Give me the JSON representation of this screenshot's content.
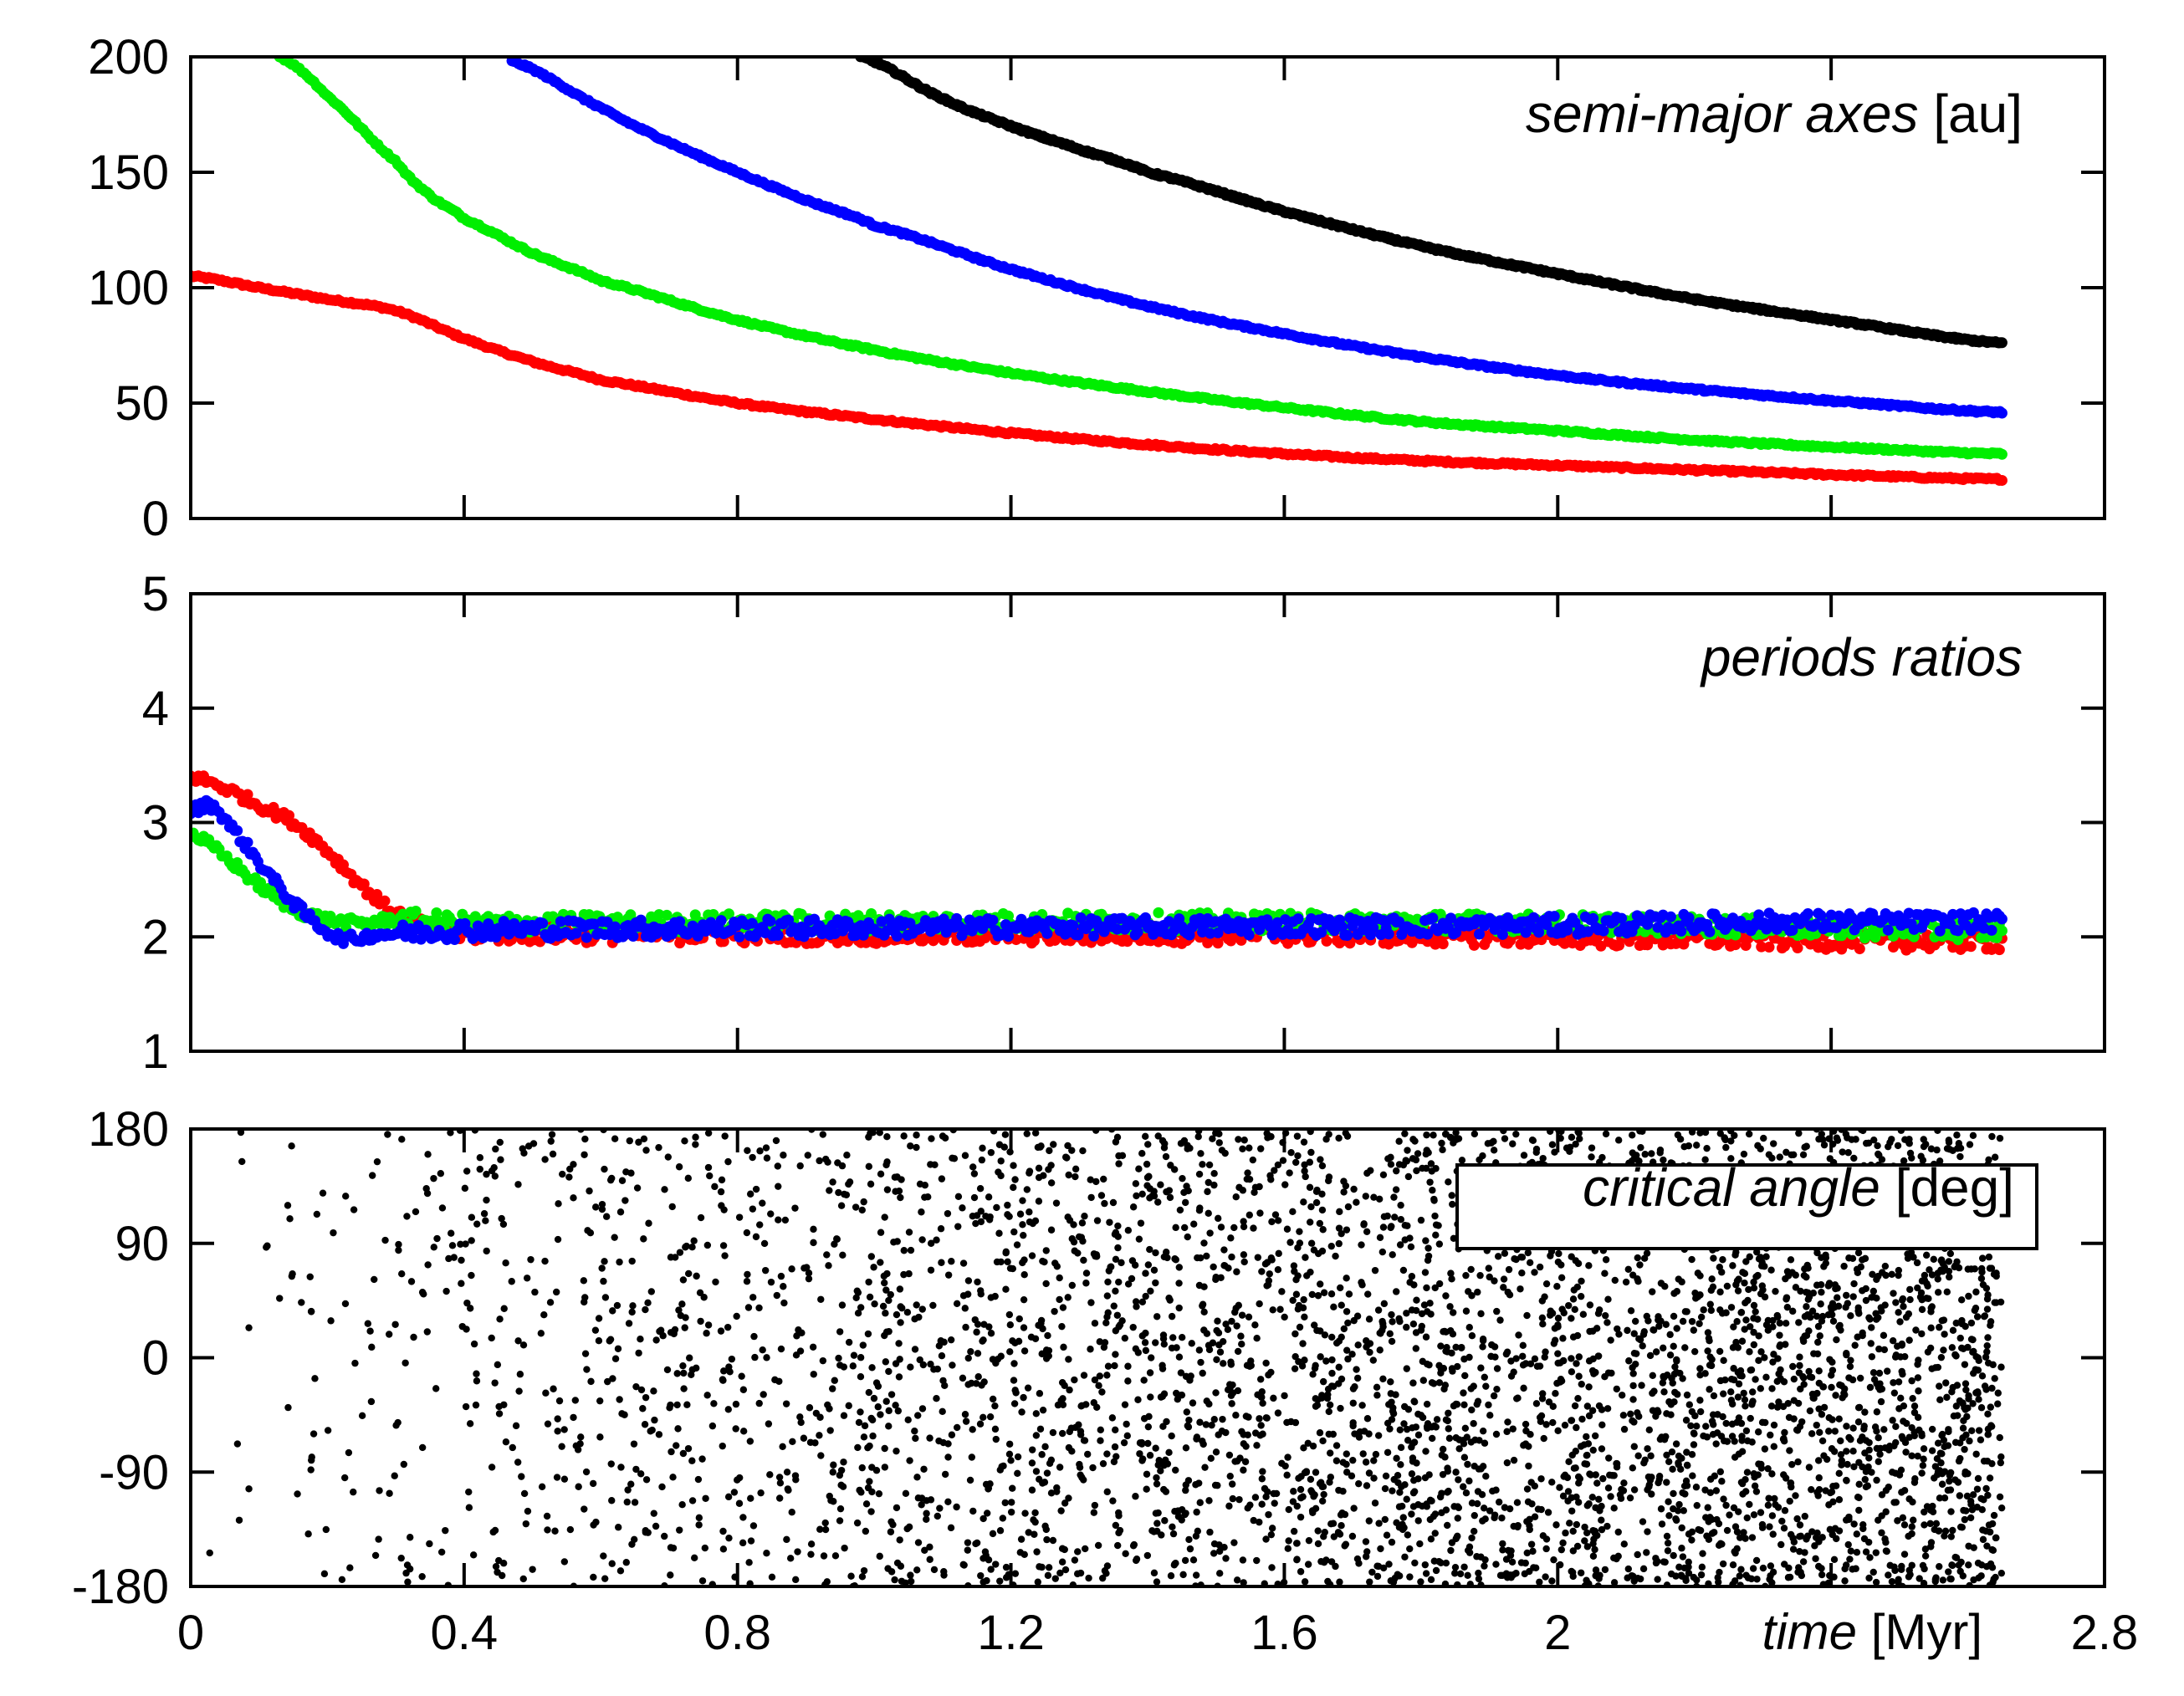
{
  "chart_data": [
    {
      "type": "line",
      "panel": "semi-major-axes",
      "label_italic": "semi-major axes",
      "label_unit": "[au]",
      "xlim": [
        0,
        2.8
      ],
      "ylim": [
        0,
        200
      ],
      "yticks": [
        0,
        50,
        100,
        150,
        200
      ],
      "ytick_labels": [
        "0",
        "50",
        "100",
        "150",
        "200"
      ],
      "series": [
        {
          "color": "#ff0000",
          "x": [
            0,
            0.1,
            0.2,
            0.3,
            0.4,
            0.5,
            0.6,
            0.8,
            1.0,
            1.2,
            1.4,
            1.6,
            1.8,
            2.0,
            2.2,
            2.4,
            2.65
          ],
          "y": [
            105,
            100,
            95,
            90,
            78,
            68,
            60,
            50,
            43,
            37,
            32,
            28,
            25,
            23,
            21,
            19,
            17
          ]
        },
        {
          "color": "#00ee00",
          "x": [
            0.13,
            0.2,
            0.3,
            0.35,
            0.4,
            0.5,
            0.6,
            0.8,
            1.0,
            1.2,
            1.4,
            1.6,
            1.8,
            2.0,
            2.2,
            2.4,
            2.65
          ],
          "y": [
            200,
            183,
            155,
            140,
            130,
            115,
            103,
            86,
            73,
            63,
            55,
            48,
            42,
            38,
            34,
            31,
            28
          ]
        },
        {
          "color": "#0000ff",
          "x": [
            0.47,
            0.6,
            0.7,
            0.8,
            0.9,
            1.0,
            1.2,
            1.4,
            1.6,
            1.8,
            2.0,
            2.2,
            2.4,
            2.65
          ],
          "y": [
            198,
            178,
            163,
            150,
            138,
            127,
            108,
            92,
            80,
            70,
            62,
            56,
            51,
            46
          ]
        },
        {
          "color": "#000000",
          "x": [
            0.98,
            1.1,
            1.2,
            1.3,
            1.4,
            1.6,
            1.8,
            2.0,
            2.2,
            2.4,
            2.65
          ],
          "y": [
            200,
            182,
            170,
            160,
            150,
            133,
            118,
            106,
            95,
            86,
            76
          ]
        }
      ]
    },
    {
      "type": "line",
      "panel": "periods-ratios",
      "label_italic": "periods ratios",
      "label_unit": "",
      "xlim": [
        0,
        2.8
      ],
      "ylim": [
        1,
        5
      ],
      "yticks": [
        1,
        2,
        3,
        4,
        5
      ],
      "ytick_labels": [
        "1",
        "2",
        "3",
        "4",
        "5"
      ],
      "series": [
        {
          "color": "#ff0000",
          "x": [
            0,
            0.05,
            0.1,
            0.15,
            0.2,
            0.25,
            0.3,
            0.35,
            0.5,
            1.0,
            1.5,
            2.0,
            2.4,
            2.65
          ],
          "y": [
            3.4,
            3.3,
            3.15,
            3.0,
            2.75,
            2.45,
            2.2,
            2.05,
            2.03,
            2.02,
            2.02,
            2.0,
            1.97,
            1.96
          ]
        },
        {
          "color": "#00ee00",
          "x": [
            0,
            0.05,
            0.1,
            0.15,
            0.2,
            0.25,
            0.3,
            0.4,
            0.6,
            1.0,
            1.5,
            2.0,
            2.65
          ],
          "y": [
            2.9,
            2.7,
            2.45,
            2.25,
            2.15,
            2.12,
            2.15,
            2.12,
            2.12,
            2.13,
            2.13,
            2.12,
            2.05
          ]
        },
        {
          "color": "#0000ff",
          "x": [
            0,
            0.03,
            0.06,
            0.1,
            0.15,
            0.2,
            0.23,
            0.27,
            0.3,
            0.4,
            0.6,
            1.0,
            1.5,
            2.0,
            2.3,
            2.65
          ],
          "y": [
            3.1,
            3.15,
            2.95,
            2.65,
            2.3,
            2.05,
            1.98,
            2.02,
            2.03,
            2.06,
            2.07,
            2.08,
            2.09,
            2.1,
            2.13,
            2.13
          ]
        }
      ]
    },
    {
      "type": "scatter",
      "panel": "critical-angle",
      "label_italic": "critical angle",
      "label_unit": "[deg]",
      "xlim": [
        0,
        2.8
      ],
      "ylim": [
        -180,
        180
      ],
      "yticks": [
        -180,
        -90,
        0,
        90,
        180
      ],
      "ytick_labels": [
        "-180",
        "-90",
        "0",
        "90",
        "180"
      ],
      "xticks": [
        0,
        0.4,
        0.8,
        1.2,
        1.6,
        2,
        2.8
      ],
      "xtick_labels": [
        "0",
        "0.4",
        "0.8",
        "1.2",
        "1.6",
        "2",
        "2.8"
      ],
      "xlabel_italic": "time",
      "xlabel_unit": "[Myr]",
      "series": [
        {
          "color": "#000000",
          "x_range": [
            0,
            2.65
          ],
          "y_range": [
            -180,
            180
          ],
          "description_density": "sparse near t=0, increasingly dense toward t=2.65"
        }
      ]
    }
  ]
}
